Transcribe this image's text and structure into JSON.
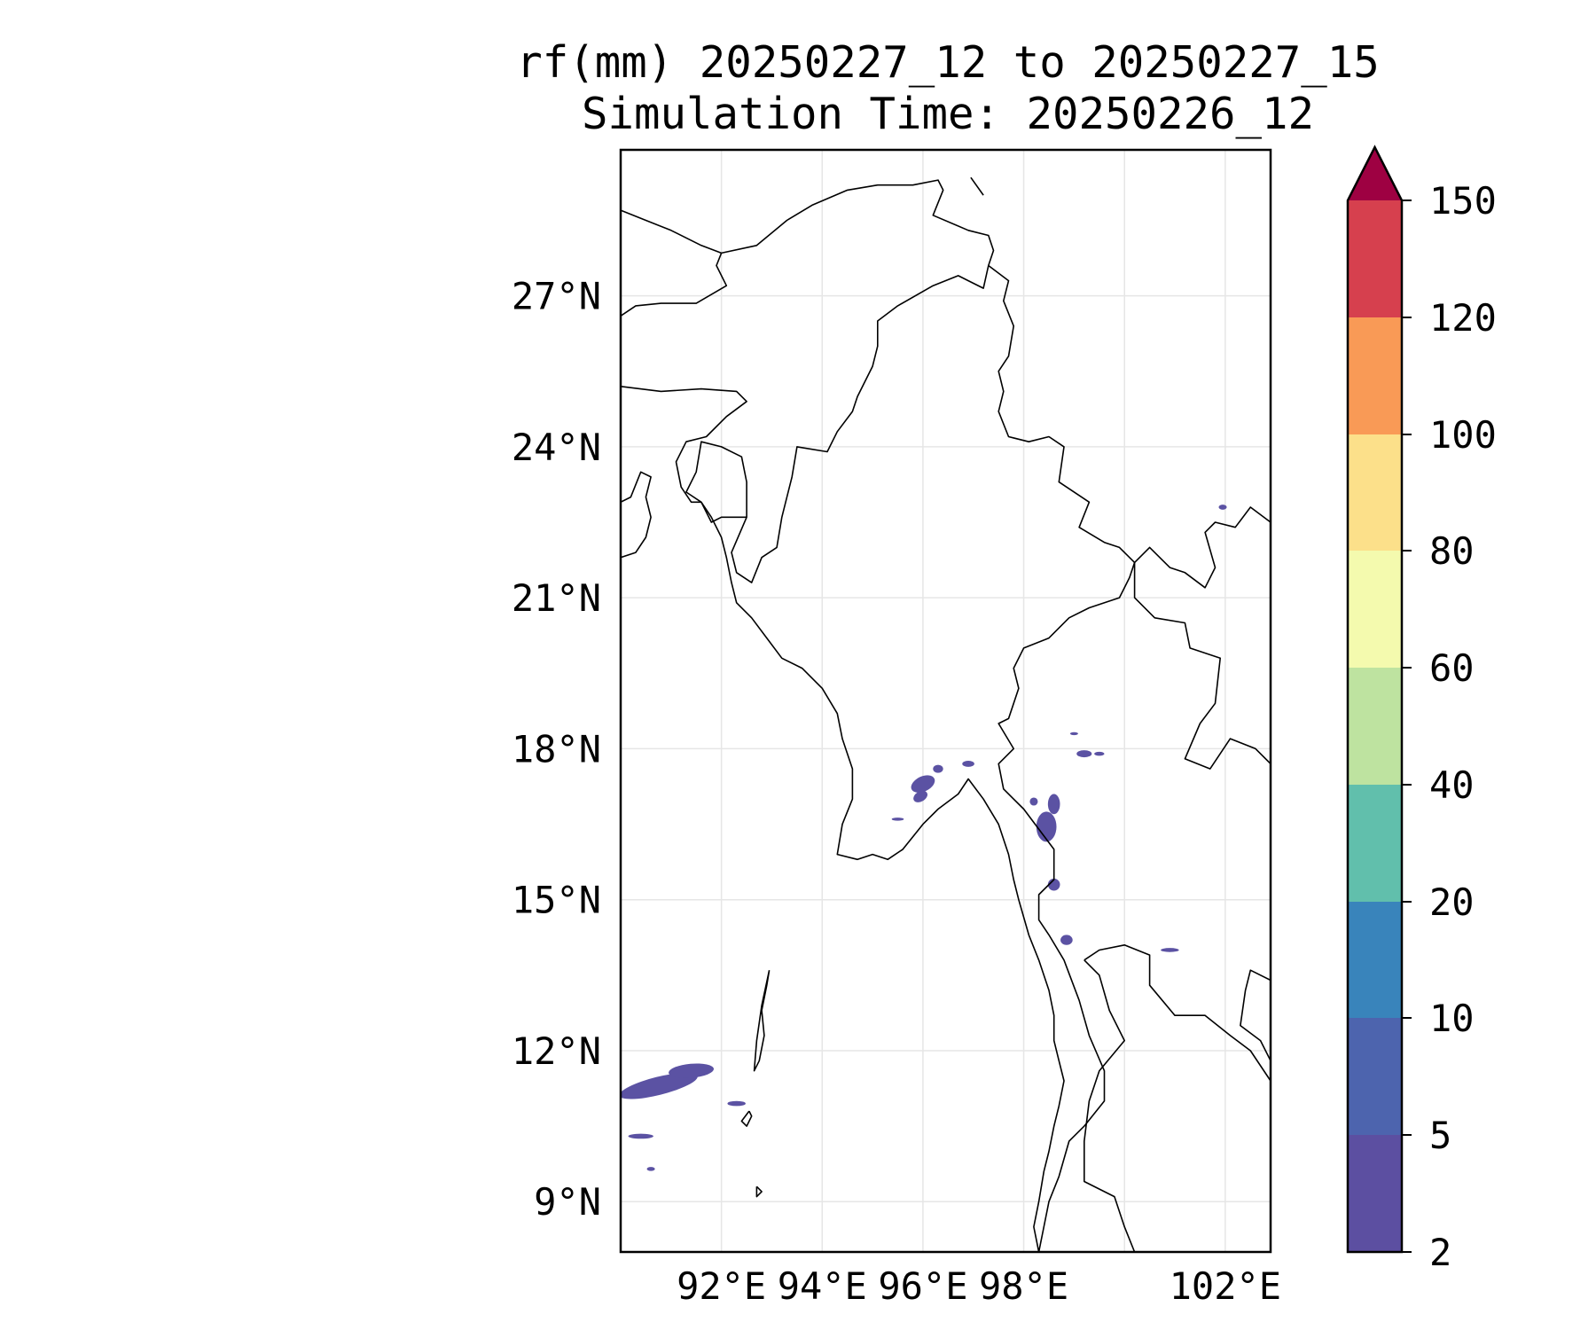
{
  "title": {
    "line1": "rf(mm) 20250227_12 to 20250227_15",
    "line2": "Simulation Time: 20250226_12"
  },
  "map": {
    "lon_range": [
      90.0,
      102.9
    ],
    "lat_range": [
      8.0,
      29.9
    ],
    "lat_ticks": [
      {
        "value": 27,
        "label": "27°N"
      },
      {
        "value": 24,
        "label": "24°N"
      },
      {
        "value": 21,
        "label": "21°N"
      },
      {
        "value": 18,
        "label": "18°N"
      },
      {
        "value": 15,
        "label": "15°N"
      },
      {
        "value": 12,
        "label": "12°N"
      },
      {
        "value": 9,
        "label": "9°N"
      }
    ],
    "lon_ticks": [
      {
        "value": 92,
        "label": "92°E"
      },
      {
        "value": 94,
        "label": "94°E"
      },
      {
        "value": 96,
        "label": "96°E"
      },
      {
        "value": 98,
        "label": "98°E"
      },
      {
        "value": 100,
        "label": ""
      },
      {
        "value": 102,
        "label": "102°E"
      }
    ],
    "gridlines": true,
    "rain_patches": [
      {
        "lon": 90.75,
        "lat": 11.3,
        "rlon": 0.8,
        "rlat": 0.18,
        "rot": -14
      },
      {
        "lon": 91.4,
        "lat": 11.6,
        "rlon": 0.45,
        "rlat": 0.14,
        "rot": -5
      },
      {
        "lon": 90.4,
        "lat": 10.3,
        "rlon": 0.25,
        "rlat": 0.05,
        "rot": 0
      },
      {
        "lon": 90.6,
        "lat": 9.65,
        "rlon": 0.08,
        "rlat": 0.04,
        "rot": 0
      },
      {
        "lon": 92.3,
        "lat": 10.95,
        "rlon": 0.18,
        "rlat": 0.05,
        "rot": 0
      },
      {
        "lon": 96.0,
        "lat": 17.3,
        "rlon": 0.25,
        "rlat": 0.15,
        "rot": -25
      },
      {
        "lon": 95.95,
        "lat": 17.05,
        "rlon": 0.15,
        "rlat": 0.1,
        "rot": -30
      },
      {
        "lon": 96.3,
        "lat": 17.6,
        "rlon": 0.1,
        "rlat": 0.08,
        "rot": 0
      },
      {
        "lon": 96.9,
        "lat": 17.7,
        "rlon": 0.12,
        "rlat": 0.06,
        "rot": 0
      },
      {
        "lon": 95.5,
        "lat": 16.6,
        "rlon": 0.12,
        "rlat": 0.03,
        "rot": 0
      },
      {
        "lon": 98.45,
        "lat": 16.45,
        "rlon": 0.2,
        "rlat": 0.3,
        "rot": 0
      },
      {
        "lon": 98.6,
        "lat": 16.9,
        "rlon": 0.12,
        "rlat": 0.2,
        "rot": 0
      },
      {
        "lon": 98.2,
        "lat": 16.95,
        "rlon": 0.08,
        "rlat": 0.08,
        "rot": 0
      },
      {
        "lon": 98.6,
        "lat": 15.3,
        "rlon": 0.12,
        "rlat": 0.12,
        "rot": 0
      },
      {
        "lon": 98.85,
        "lat": 14.2,
        "rlon": 0.12,
        "rlat": 0.1,
        "rot": 0
      },
      {
        "lon": 98.6,
        "lat": 17.05,
        "rlon": 0.06,
        "rlat": 0.05,
        "rot": 0
      },
      {
        "lon": 99.2,
        "lat": 17.9,
        "rlon": 0.15,
        "rlat": 0.07,
        "rot": 0
      },
      {
        "lon": 99.0,
        "lat": 18.3,
        "rlon": 0.08,
        "rlat": 0.03,
        "rot": 0
      },
      {
        "lon": 99.5,
        "lat": 17.9,
        "rlon": 0.1,
        "rlat": 0.04,
        "rot": 0
      },
      {
        "lon": 100.9,
        "lat": 14.0,
        "rlon": 0.18,
        "rlat": 0.04,
        "rot": 0
      },
      {
        "lon": 101.95,
        "lat": 22.8,
        "rlon": 0.08,
        "rlat": 0.05,
        "rot": 0
      }
    ],
    "rain_color": "#5b52a3",
    "lines": [
      [
        [
          90,
          28.7
        ],
        [
          90.5,
          28.5
        ],
        [
          91.0,
          28.3
        ],
        [
          91.6,
          28.0
        ],
        [
          92.0,
          27.85
        ],
        [
          91.9,
          27.6
        ],
        [
          92.1,
          27.2
        ],
        [
          91.5,
          26.85
        ],
        [
          90.8,
          26.85
        ],
        [
          90.3,
          26.8
        ],
        [
          90,
          26.6
        ]
      ],
      [
        [
          92.0,
          27.85
        ],
        [
          92.7,
          28.0
        ],
        [
          93.3,
          28.5
        ],
        [
          93.8,
          28.8
        ],
        [
          94.5,
          29.1
        ],
        [
          95.1,
          29.2
        ],
        [
          95.8,
          29.2
        ],
        [
          96.3,
          29.3
        ],
        [
          96.4,
          29.1
        ],
        [
          96.2,
          28.6
        ],
        [
          96.9,
          28.3
        ],
        [
          97.3,
          28.2
        ],
        [
          97.4,
          27.9
        ],
        [
          97.3,
          27.6
        ],
        [
          97.2,
          27.15
        ],
        [
          96.9,
          27.3
        ],
        [
          96.7,
          27.4
        ],
        [
          96.2,
          27.2
        ],
        [
          95.5,
          26.8
        ],
        [
          95.1,
          26.5
        ],
        [
          95.1,
          26.0
        ],
        [
          95.0,
          25.6
        ],
        [
          94.7,
          25.0
        ],
        [
          94.6,
          24.7
        ],
        [
          94.3,
          24.3
        ],
        [
          94.1,
          23.9
        ],
        [
          93.5,
          24.0
        ],
        [
          93.4,
          23.4
        ],
        [
          93.2,
          22.6
        ],
        [
          93.1,
          22.0
        ],
        [
          92.8,
          21.8
        ],
        [
          92.6,
          21.3
        ],
        [
          92.3,
          21.5
        ],
        [
          92.2,
          21.9
        ],
        [
          92.5,
          22.6
        ],
        [
          92.5,
          23.3
        ],
        [
          92.4,
          23.8
        ],
        [
          92.0,
          24.0
        ],
        [
          91.6,
          24.1
        ],
        [
          91.5,
          23.5
        ],
        [
          91.3,
          23.1
        ],
        [
          91.6,
          22.9
        ],
        [
          91.8,
          22.5
        ],
        [
          92.0,
          22.6
        ],
        [
          92.5,
          22.6
        ]
      ],
      [
        [
          90,
          25.2
        ],
        [
          90.8,
          25.1
        ],
        [
          91.6,
          25.15
        ],
        [
          92.3,
          25.1
        ],
        [
          92.5,
          24.9
        ],
        [
          92.1,
          24.6
        ],
        [
          91.7,
          24.2
        ],
        [
          91.3,
          24.1
        ],
        [
          91.1,
          23.7
        ],
        [
          91.2,
          23.2
        ],
        [
          91.4,
          22.9
        ],
        [
          91.6,
          22.9
        ]
      ],
      [
        [
          90,
          21.8
        ],
        [
          90.3,
          21.9
        ],
        [
          90.5,
          22.2
        ],
        [
          90.6,
          22.6
        ],
        [
          90.5,
          23.0
        ],
        [
          90.6,
          23.4
        ],
        [
          90.4,
          23.5
        ],
        [
          90.2,
          23.0
        ],
        [
          90.0,
          22.9
        ]
      ],
      [
        [
          91.6,
          22.9
        ],
        [
          91.8,
          22.6
        ],
        [
          92.0,
          22.2
        ],
        [
          92.1,
          21.8
        ],
        [
          92.2,
          21.3
        ],
        [
          92.3,
          20.9
        ],
        [
          92.6,
          20.6
        ],
        [
          92.9,
          20.2
        ],
        [
          93.2,
          19.8
        ],
        [
          93.6,
          19.6
        ],
        [
          94.0,
          19.2
        ],
        [
          94.3,
          18.7
        ],
        [
          94.4,
          18.2
        ],
        [
          94.6,
          17.6
        ],
        [
          94.6,
          17.0
        ],
        [
          94.4,
          16.5
        ],
        [
          94.3,
          15.9
        ],
        [
          94.7,
          15.8
        ],
        [
          95.0,
          15.9
        ],
        [
          95.3,
          15.8
        ],
        [
          95.6,
          16.0
        ],
        [
          96.0,
          16.5
        ],
        [
          96.3,
          16.8
        ],
        [
          96.7,
          17.1
        ],
        [
          96.9,
          17.4
        ],
        [
          97.2,
          17.0
        ],
        [
          97.5,
          16.5
        ],
        [
          97.7,
          15.9
        ],
        [
          97.8,
          15.4
        ],
        [
          97.9,
          15.0
        ],
        [
          98.1,
          14.3
        ],
        [
          98.3,
          13.8
        ],
        [
          98.5,
          13.2
        ],
        [
          98.6,
          12.7
        ],
        [
          98.6,
          12.2
        ],
        [
          98.7,
          11.8
        ],
        [
          98.8,
          11.4
        ],
        [
          98.7,
          10.9
        ],
        [
          98.6,
          10.5
        ],
        [
          98.5,
          10.0
        ],
        [
          98.4,
          9.6
        ],
        [
          98.3,
          9.0
        ],
        [
          98.2,
          8.5
        ],
        [
          98.3,
          8.0
        ]
      ],
      [
        [
          97.3,
          27.6
        ],
        [
          97.7,
          27.3
        ],
        [
          97.6,
          26.9
        ],
        [
          97.8,
          26.4
        ],
        [
          97.7,
          25.8
        ],
        [
          97.5,
          25.5
        ],
        [
          97.6,
          25.1
        ],
        [
          97.5,
          24.7
        ],
        [
          97.7,
          24.2
        ],
        [
          98.1,
          24.1
        ],
        [
          98.5,
          24.2
        ],
        [
          98.8,
          24.0
        ],
        [
          98.7,
          23.3
        ],
        [
          99.3,
          22.9
        ],
        [
          99.1,
          22.4
        ],
        [
          99.6,
          22.1
        ],
        [
          99.9,
          22.0
        ],
        [
          100.2,
          21.7
        ],
        [
          100.5,
          22.0
        ],
        [
          100.9,
          21.6
        ],
        [
          101.2,
          21.5
        ],
        [
          101.6,
          21.2
        ],
        [
          101.8,
          21.6
        ],
        [
          101.6,
          22.3
        ],
        [
          101.8,
          22.5
        ],
        [
          102.2,
          22.4
        ],
        [
          102.5,
          22.8
        ],
        [
          102.9,
          22.5
        ]
      ],
      [
        [
          100.2,
          21.7
        ],
        [
          100.1,
          21.4
        ],
        [
          99.9,
          21.0
        ],
        [
          99.3,
          20.8
        ],
        [
          98.9,
          20.6
        ],
        [
          98.5,
          20.2
        ],
        [
          98.0,
          20.0
        ],
        [
          97.8,
          19.6
        ],
        [
          97.9,
          19.2
        ],
        [
          97.7,
          18.6
        ],
        [
          97.5,
          18.5
        ],
        [
          97.8,
          18.0
        ],
        [
          97.5,
          17.7
        ],
        [
          97.6,
          17.2
        ],
        [
          98.0,
          16.8
        ],
        [
          98.6,
          16.0
        ],
        [
          98.6,
          15.4
        ],
        [
          98.3,
          15.1
        ],
        [
          98.3,
          14.6
        ],
        [
          98.5,
          14.3
        ],
        [
          98.8,
          13.8
        ],
        [
          99.1,
          13.0
        ],
        [
          99.3,
          12.3
        ],
        [
          99.6,
          11.6
        ],
        [
          99.6,
          11.0
        ],
        [
          99.2,
          10.5
        ],
        [
          98.9,
          10.2
        ],
        [
          98.7,
          9.5
        ],
        [
          98.5,
          9.0
        ],
        [
          98.4,
          8.5
        ],
        [
          98.3,
          8.0
        ]
      ],
      [
        [
          100.2,
          21.7
        ],
        [
          100.2,
          21.0
        ],
        [
          100.6,
          20.6
        ],
        [
          101.2,
          20.5
        ],
        [
          101.3,
          20.0
        ],
        [
          101.9,
          19.8
        ],
        [
          101.8,
          18.9
        ],
        [
          101.5,
          18.5
        ],
        [
          101.2,
          17.8
        ],
        [
          101.7,
          17.6
        ],
        [
          102.1,
          18.2
        ],
        [
          102.6,
          18.0
        ],
        [
          102.9,
          17.7
        ]
      ],
      [
        [
          99.2,
          13.8
        ],
        [
          99.5,
          14.0
        ],
        [
          100.0,
          14.1
        ],
        [
          100.5,
          13.9
        ],
        [
          100.5,
          13.3
        ],
        [
          101.0,
          12.7
        ],
        [
          101.6,
          12.7
        ],
        [
          102.1,
          12.3
        ],
        [
          102.5,
          12.0
        ],
        [
          102.9,
          11.4
        ]
      ],
      [
        [
          99.2,
          13.8
        ],
        [
          99.5,
          13.5
        ],
        [
          99.7,
          12.8
        ],
        [
          100.0,
          12.2
        ],
        [
          99.5,
          11.6
        ],
        [
          99.3,
          11.0
        ],
        [
          99.2,
          10.2
        ],
        [
          99.2,
          9.4
        ],
        [
          99.8,
          9.1
        ],
        [
          100.0,
          8.5
        ],
        [
          100.2,
          8.0
        ]
      ],
      [
        [
          102.9,
          13.4
        ],
        [
          102.5,
          13.6
        ],
        [
          102.4,
          13.2
        ],
        [
          102.3,
          12.5
        ],
        [
          102.7,
          12.2
        ],
        [
          102.9,
          11.8
        ]
      ],
      [
        [
          92.95,
          13.6
        ],
        [
          92.9,
          13.3
        ],
        [
          92.8,
          12.8
        ],
        [
          92.85,
          12.3
        ],
        [
          92.75,
          11.8
        ],
        [
          92.65,
          11.6
        ],
        [
          92.7,
          12.2
        ],
        [
          92.8,
          12.9
        ],
        [
          92.95,
          13.6
        ]
      ],
      [
        [
          92.55,
          10.8
        ],
        [
          92.4,
          10.6
        ],
        [
          92.5,
          10.5
        ],
        [
          92.6,
          10.7
        ],
        [
          92.55,
          10.8
        ]
      ],
      [
        [
          92.7,
          9.3
        ],
        [
          92.8,
          9.2
        ],
        [
          92.7,
          9.1
        ],
        [
          92.7,
          9.3
        ]
      ],
      [
        [
          96.95,
          29.35
        ],
        [
          97.2,
          29.0
        ]
      ]
    ]
  }
}
